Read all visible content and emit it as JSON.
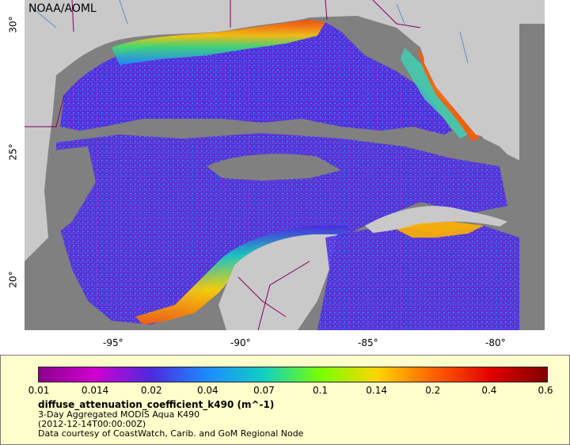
{
  "map": {
    "org_label": "NOAA/AOML",
    "x_ticks": [
      "-95°",
      "-90°",
      "-85°",
      "-80°"
    ],
    "y_ticks": [
      "30°",
      "25°",
      "20°"
    ],
    "colors": {
      "land": "#c9c9c9",
      "no_data": "#808080",
      "coastline": "#5e8fc8",
      "borders": "#800060"
    }
  },
  "legend": {
    "colorbar_ticks": [
      "0.01",
      "0.014",
      "0.02",
      "0.04",
      "0.07",
      "0.1",
      "0.14",
      "0.2",
      "0.4",
      "0.6"
    ],
    "colorbar_colors": [
      "#8b008b",
      "#d000d0",
      "#4b2bdc",
      "#1c8cff",
      "#12d0c0",
      "#7aff00",
      "#ffd400",
      "#ff6000",
      "#e40000",
      "#800000"
    ],
    "variable_title": "diffuse_attenuation_coefficient_k490 (m^-1)",
    "subtitle": "3-Day Aggregated MODIS Aqua K490",
    "date": "(2012-12-14T00:00:00Z)",
    "credit": "Data courtesy of CoastWatch, Carib. and GoM Regional Node"
  }
}
